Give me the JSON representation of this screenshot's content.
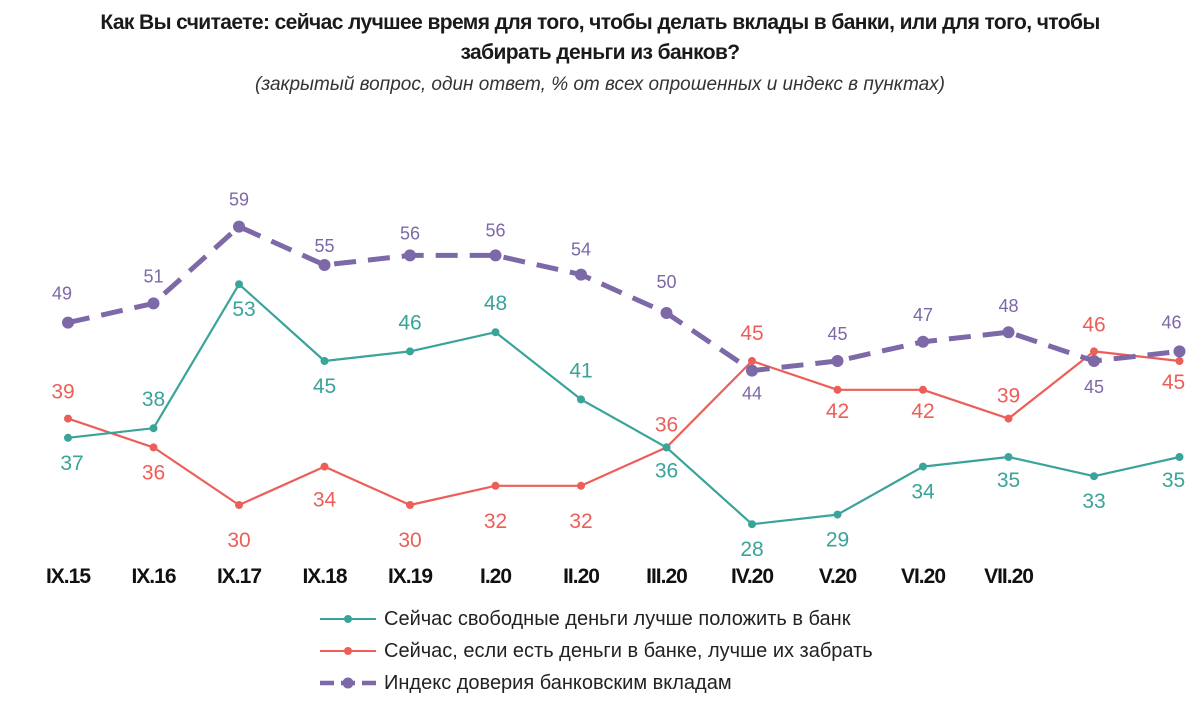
{
  "title": {
    "line1": "Как Вы считаете: сейчас лучшее время для того, чтобы делать вклады в банки, или для того, чтобы",
    "line2": "забирать деньги из банков?"
  },
  "subtitle": "(закрытый вопрос, один ответ, % от всех опрошенных и индекс в пунктах)",
  "chart_data": {
    "type": "line",
    "categories": [
      "IX.15",
      "IX.16",
      "IX.17",
      "IX.18",
      "IX.19",
      "I.20",
      "II.20",
      "III.20",
      "IV.20",
      "V.20",
      "VI.20",
      "VII.20",
      "",
      ""
    ],
    "series": [
      {
        "name": "Сейчас свободные деньги лучше положить в банк",
        "color": "#3aa39a",
        "style": "solid",
        "values": [
          37,
          38,
          53,
          45,
          46,
          48,
          41,
          36,
          28,
          29,
          34,
          35,
          33,
          35
        ]
      },
      {
        "name": "Сейчас, если есть деньги в банке, лучше их забрать",
        "color": "#ec5f58",
        "style": "solid",
        "values": [
          39,
          36,
          30,
          34,
          30,
          32,
          32,
          36,
          45,
          42,
          42,
          39,
          46,
          45
        ]
      },
      {
        "name": "Индекс доверия банковским вкладам",
        "color": "#7d68a8",
        "style": "dashed",
        "values": [
          49,
          51,
          59,
          55,
          56,
          56,
          54,
          50,
          44,
          45,
          47,
          48,
          45,
          46
        ]
      }
    ],
    "grid": false,
    "legend_position": "bottom"
  }
}
